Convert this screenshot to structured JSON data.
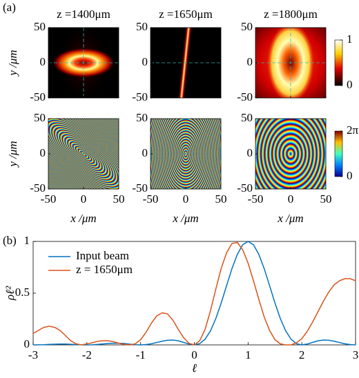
{
  "panel_labels": [
    "(a)",
    "(b)"
  ],
  "chart_data": [
    {
      "type": "image-grid",
      "titles": [
        "z =1400μm",
        "z =1650μm",
        "z =1800μm"
      ],
      "xlabel": "x /μm",
      "ylabel": "y /μm",
      "xlim": [
        -50,
        50
      ],
      "ylim": [
        -50,
        50
      ],
      "xticks": [
        -50,
        0,
        50
      ],
      "yticks": [
        -50,
        0,
        50
      ],
      "colorbars": [
        {
          "clim": [
            0,
            1
          ],
          "ticks": [
            0,
            1
          ]
        },
        {
          "clim": [
            0,
            6.283
          ],
          "ticks": [
            0,
            {
              "value": 6.283,
              "label": "2π"
            }
          ]
        }
      ]
    },
    {
      "type": "line",
      "xlabel": "ℓ",
      "ylabel": "ρℓ²",
      "xlim": [
        -3,
        3
      ],
      "ylim": [
        0,
        1
      ],
      "xticks": [
        -3,
        -2,
        -1,
        0,
        1,
        2,
        3
      ],
      "yticks": [
        0,
        0.5,
        1
      ],
      "legend": "upper left",
      "x": [
        -3,
        -2.9,
        -2.8,
        -2.7,
        -2.6,
        -2.5,
        -2.4,
        -2.3,
        -2.2,
        -2.1,
        -2,
        -1.9,
        -1.8,
        -1.7,
        -1.6,
        -1.5,
        -1.4,
        -1.3,
        -1.2,
        -1.1,
        -1,
        -0.9,
        -0.8,
        -0.7,
        -0.6,
        -0.5,
        -0.4,
        -0.3,
        -0.2,
        -0.1,
        0,
        0.1,
        0.2,
        0.3,
        0.4,
        0.5,
        0.6,
        0.7,
        0.8,
        0.9,
        1,
        1.1,
        1.2,
        1.3,
        1.4,
        1.5,
        1.6,
        1.7,
        1.8,
        1.9,
        2,
        2.1,
        2.2,
        2.3,
        2.4,
        2.5,
        2.6,
        2.7,
        2.8,
        2.9,
        3
      ],
      "series": [
        {
          "name": "Input beam",
          "color": "#0072bd",
          "values": [
            0,
            0.001,
            0.002,
            0.005,
            0.007,
            0.008,
            0.008,
            0.006,
            0.003,
            0.001,
            0,
            0.001,
            0.005,
            0.009,
            0.014,
            0.016,
            0.016,
            0.013,
            0.007,
            0.002,
            0,
            0.003,
            0.011,
            0.023,
            0.036,
            0.045,
            0.047,
            0.039,
            0.024,
            0.008,
            0,
            0.012,
            0.055,
            0.135,
            0.255,
            0.405,
            0.573,
            0.737,
            0.875,
            0.968,
            1,
            0.968,
            0.875,
            0.737,
            0.573,
            0.405,
            0.255,
            0.135,
            0.055,
            0.012,
            0,
            0.008,
            0.024,
            0.039,
            0.047,
            0.045,
            0.036,
            0.023,
            0.011,
            0.003,
            0
          ]
        },
        {
          "name": "z = 1650μm",
          "color": "#d95319",
          "values": [
            0.11,
            0.14,
            0.17,
            0.18,
            0.17,
            0.14,
            0.09,
            0.04,
            0.01,
            0,
            0.01,
            0.02,
            0.035,
            0.04,
            0.04,
            0.03,
            0.015,
            0.005,
            0,
            0.01,
            0.05,
            0.12,
            0.21,
            0.28,
            0.31,
            0.3,
            0.24,
            0.15,
            0.07,
            0.015,
            0,
            0.04,
            0.15,
            0.33,
            0.54,
            0.74,
            0.89,
            0.98,
            0.99,
            0.92,
            0.79,
            0.62,
            0.44,
            0.27,
            0.14,
            0.05,
            0.01,
            0,
            0,
            0.02,
            0.06,
            0.13,
            0.22,
            0.32,
            0.42,
            0.51,
            0.58,
            0.62,
            0.64,
            0.64,
            0.62
          ]
        }
      ]
    }
  ]
}
